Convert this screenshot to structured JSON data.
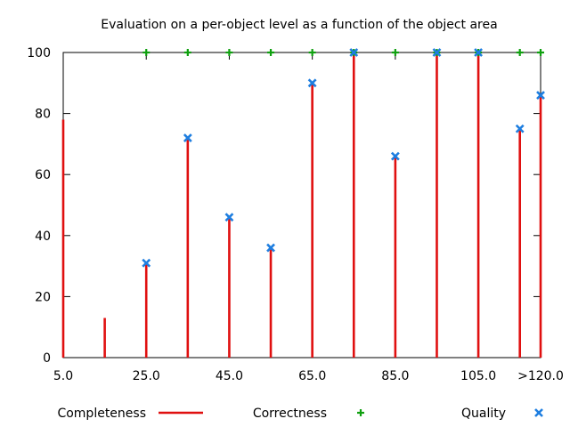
{
  "chart_data": {
    "type": "bar",
    "title": "Evaluation on a per-object level as a function of the object area",
    "xlabel": "",
    "ylabel": "",
    "xlim": [
      5,
      120
    ],
    "ylim": [
      0,
      100
    ],
    "x_ticks": [
      {
        "value": 5,
        "label": "5.0"
      },
      {
        "value": 25,
        "label": "25.0"
      },
      {
        "value": 45,
        "label": "45.0"
      },
      {
        "value": 65,
        "label": "65.0"
      },
      {
        "value": 85,
        "label": "85.0"
      },
      {
        "value": 105,
        "label": "105.0"
      },
      {
        "value": 120,
        "label": ">120.0"
      }
    ],
    "y_ticks": [
      0,
      20,
      40,
      60,
      80,
      100
    ],
    "grid": false,
    "legend_position": "bottom",
    "series": [
      {
        "name": "Completeness",
        "style": "impulses",
        "color": "#e01010",
        "points": [
          {
            "x": 5,
            "y": 78
          },
          {
            "x": 15,
            "y": 13
          },
          {
            "x": 25,
            "y": 31
          },
          {
            "x": 35,
            "y": 72
          },
          {
            "x": 45,
            "y": 46
          },
          {
            "x": 55,
            "y": 36
          },
          {
            "x": 65,
            "y": 90
          },
          {
            "x": 75,
            "y": 100
          },
          {
            "x": 85,
            "y": 66
          },
          {
            "x": 95,
            "y": 100
          },
          {
            "x": 105,
            "y": 100
          },
          {
            "x": 115,
            "y": 75
          },
          {
            "x": 120,
            "y": 86
          }
        ]
      },
      {
        "name": "Correctness",
        "style": "plus",
        "color": "#10a010",
        "points": [
          {
            "x": 25,
            "y": 100
          },
          {
            "x": 35,
            "y": 100
          },
          {
            "x": 45,
            "y": 100
          },
          {
            "x": 55,
            "y": 100
          },
          {
            "x": 65,
            "y": 100
          },
          {
            "x": 75,
            "y": 100
          },
          {
            "x": 85,
            "y": 100
          },
          {
            "x": 95,
            "y": 100
          },
          {
            "x": 105,
            "y": 100
          },
          {
            "x": 115,
            "y": 100
          },
          {
            "x": 120,
            "y": 100
          }
        ]
      },
      {
        "name": "Quality",
        "style": "cross",
        "color": "#1e7ee0",
        "points": [
          {
            "x": 25,
            "y": 31
          },
          {
            "x": 35,
            "y": 72
          },
          {
            "x": 45,
            "y": 46
          },
          {
            "x": 55,
            "y": 36
          },
          {
            "x": 65,
            "y": 90
          },
          {
            "x": 75,
            "y": 100
          },
          {
            "x": 85,
            "y": 66
          },
          {
            "x": 95,
            "y": 100
          },
          {
            "x": 105,
            "y": 100
          },
          {
            "x": 115,
            "y": 75
          },
          {
            "x": 120,
            "y": 86
          }
        ]
      }
    ]
  }
}
